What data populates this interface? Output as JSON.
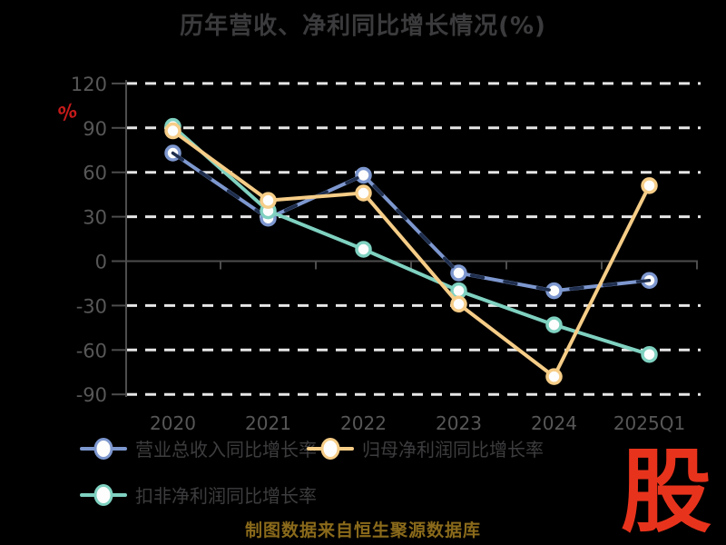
{
  "page": {
    "background_color": "#000000",
    "footer_note": "制图数据来自恒生聚源数据库",
    "footer_color": "#8a6a1b",
    "logo_text": "股",
    "logo_color": "#e8331c"
  },
  "chart_data": {
    "type": "line",
    "title": "历年营收、净利同比增长情况(%)",
    "title_color": "#3b3b3d",
    "categories": [
      "2020",
      "2021",
      "2022",
      "2023",
      "2024",
      "2025Q1"
    ],
    "x_label_color": "#575757",
    "y_axis": {
      "unit": "%",
      "unit_color": "#c41a1a",
      "min": -90,
      "max": 120,
      "step": 30,
      "ticks": [
        120,
        90,
        60,
        30,
        0,
        -30,
        -60,
        -90
      ],
      "label_color": "#575757"
    },
    "grid": {
      "gridline_color": "#e6e6e6",
      "gridline_dashed": true,
      "axis_color": "#4d4d4d"
    },
    "legend": {
      "position": "bottom",
      "text_color": "#3d3d3f",
      "marker_fill": "#fdfdfd"
    },
    "series": [
      {
        "name": "营业总收入同比增长率",
        "color": "#7d97cf",
        "overlay_dash_color": "#1f2e4d",
        "values": [
          73,
          29,
          58,
          -8,
          -20,
          -13
        ]
      },
      {
        "name": "归母净利润同比增长率",
        "color": "#f6cd87",
        "values": [
          88,
          41,
          46,
          -29,
          -78,
          51
        ]
      },
      {
        "name": "扣非净利润同比增长率",
        "color": "#7fd1c0",
        "values": [
          91,
          34,
          8,
          -20,
          -43,
          -63
        ]
      }
    ]
  }
}
